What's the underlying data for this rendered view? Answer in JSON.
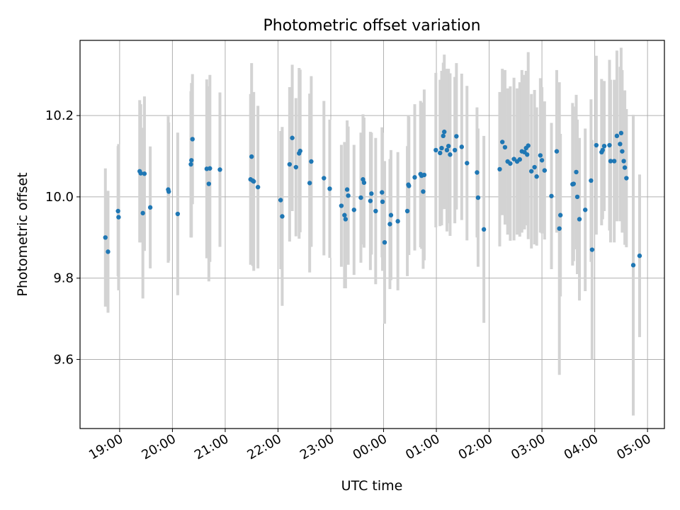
{
  "chart_data": {
    "type": "scatter",
    "title": "Photometric offset variation",
    "xlabel": "UTC time",
    "ylabel": "Photometric offset",
    "x_axis": "time",
    "x_reference_midnight": "00:00",
    "xlim_hours": [
      -5.75,
      5.32
    ],
    "ylim": [
      9.43,
      10.385
    ],
    "xticks": [
      "19:00",
      "20:00",
      "21:00",
      "22:00",
      "23:00",
      "00:00",
      "01:00",
      "02:00",
      "03:00",
      "04:00",
      "05:00"
    ],
    "xtick_hours": [
      -5,
      -4,
      -3,
      -2,
      -1,
      0,
      1,
      2,
      3,
      4,
      5
    ],
    "yticks": [
      9.6,
      9.8,
      10.0,
      10.2
    ],
    "ytick_labels": [
      "9.6",
      "9.8",
      "10.0",
      "10.2"
    ],
    "grid": true,
    "colors": {
      "points": "#1f77b4",
      "errorbars": "#d3d3d3",
      "grid": "#b0b0b0"
    },
    "points": [
      [
        -5.27,
        9.9,
        0.17
      ],
      [
        -5.22,
        9.865,
        0.15
      ],
      [
        -5.03,
        9.965,
        0.16
      ],
      [
        -5.02,
        9.95,
        0.18
      ],
      [
        -4.62,
        10.063,
        0.175
      ],
      [
        -4.6,
        10.058,
        0.17
      ],
      [
        -4.56,
        9.96,
        0.21
      ],
      [
        -4.53,
        10.057,
        0.19
      ],
      [
        -4.42,
        9.974,
        0.15
      ],
      [
        -4.08,
        10.018,
        0.18
      ],
      [
        -4.07,
        10.013,
        0.17
      ],
      [
        -3.9,
        9.958,
        0.2
      ],
      [
        -3.65,
        10.08,
        0.18
      ],
      [
        -3.64,
        10.09,
        0.19
      ],
      [
        -3.62,
        10.142,
        0.16
      ],
      [
        -3.35,
        10.069,
        0.22
      ],
      [
        -3.31,
        10.032,
        0.24
      ],
      [
        -3.29,
        10.07,
        0.23
      ],
      [
        -3.1,
        10.067,
        0.19
      ],
      [
        -2.52,
        10.043,
        0.21
      ],
      [
        -2.5,
        10.099,
        0.23
      ],
      [
        -2.48,
        10.04,
        0.21
      ],
      [
        -2.46,
        10.038,
        0.22
      ],
      [
        -2.38,
        10.024,
        0.2
      ],
      [
        -1.95,
        9.992,
        0.17
      ],
      [
        -1.92,
        9.952,
        0.22
      ],
      [
        -1.78,
        10.08,
        0.19
      ],
      [
        -1.73,
        10.145,
        0.18
      ],
      [
        -1.66,
        10.073,
        0.17
      ],
      [
        -1.6,
        10.107,
        0.21
      ],
      [
        -1.58,
        10.113,
        0.2
      ],
      [
        -1.4,
        10.034,
        0.22
      ],
      [
        -1.37,
        10.087,
        0.21
      ],
      [
        -1.13,
        10.046,
        0.19
      ],
      [
        -1.02,
        10.02,
        0.17
      ],
      [
        -0.8,
        9.978,
        0.15
      ],
      [
        -0.74,
        9.955,
        0.18
      ],
      [
        -0.72,
        9.945,
        0.17
      ],
      [
        -0.69,
        10.018,
        0.17
      ],
      [
        -0.67,
        10.003,
        0.17
      ],
      [
        -0.56,
        9.968,
        0.16
      ],
      [
        -0.43,
        9.998,
        0.16
      ],
      [
        -0.39,
        10.043,
        0.16
      ],
      [
        -0.37,
        10.035,
        0.16
      ],
      [
        -0.25,
        9.99,
        0.17
      ],
      [
        -0.23,
        10.008,
        0.15
      ],
      [
        -0.15,
        9.965,
        0.18
      ],
      [
        -0.03,
        10.011,
        0.16
      ],
      [
        -0.02,
        9.988,
        0.17
      ],
      [
        0.02,
        9.888,
        0.2
      ],
      [
        0.12,
        9.933,
        0.16
      ],
      [
        0.14,
        9.955,
        0.16
      ],
      [
        0.27,
        9.94,
        0.17
      ],
      [
        0.45,
        9.965,
        0.16
      ],
      [
        0.47,
        10.03,
        0.17
      ],
      [
        0.48,
        10.027,
        0.17
      ],
      [
        0.59,
        10.048,
        0.18
      ],
      [
        0.7,
        10.056,
        0.18
      ],
      [
        0.72,
        10.052,
        0.18
      ],
      [
        0.75,
        10.013,
        0.19
      ],
      [
        0.77,
        10.054,
        0.21
      ],
      [
        0.99,
        10.115,
        0.19
      ],
      [
        1.07,
        10.108,
        0.18
      ],
      [
        1.1,
        10.12,
        0.19
      ],
      [
        1.13,
        10.15,
        0.18
      ],
      [
        1.15,
        10.16,
        0.19
      ],
      [
        1.2,
        10.115,
        0.2
      ],
      [
        1.23,
        10.125,
        0.19
      ],
      [
        1.26,
        10.104,
        0.2
      ],
      [
        1.35,
        10.115,
        0.18
      ],
      [
        1.38,
        10.149,
        0.18
      ],
      [
        1.48,
        10.123,
        0.18
      ],
      [
        1.58,
        10.083,
        0.19
      ],
      [
        1.77,
        10.06,
        0.16
      ],
      [
        1.79,
        9.998,
        0.17
      ],
      [
        1.9,
        9.92,
        0.23
      ],
      [
        2.2,
        10.068,
        0.19
      ],
      [
        2.25,
        10.135,
        0.18
      ],
      [
        2.3,
        10.122,
        0.19
      ],
      [
        2.35,
        10.087,
        0.18
      ],
      [
        2.4,
        10.082,
        0.19
      ],
      [
        2.47,
        10.093,
        0.2
      ],
      [
        2.53,
        10.087,
        0.18
      ],
      [
        2.58,
        10.092,
        0.19
      ],
      [
        2.62,
        10.112,
        0.2
      ],
      [
        2.67,
        10.11,
        0.19
      ],
      [
        2.7,
        10.12,
        0.19
      ],
      [
        2.72,
        10.104,
        0.17
      ],
      [
        2.74,
        10.126,
        0.23
      ],
      [
        2.8,
        10.063,
        0.19
      ],
      [
        2.86,
        10.073,
        0.19
      ],
      [
        2.9,
        10.05,
        0.17
      ],
      [
        2.97,
        10.102,
        0.19
      ],
      [
        3.0,
        10.09,
        0.18
      ],
      [
        3.05,
        10.065,
        0.17
      ],
      [
        3.18,
        10.002,
        0.18
      ],
      [
        3.28,
        10.112,
        0.2
      ],
      [
        3.33,
        9.922,
        0.36
      ],
      [
        3.35,
        9.955,
        0.2
      ],
      [
        3.58,
        10.031,
        0.2
      ],
      [
        3.6,
        10.032,
        0.19
      ],
      [
        3.65,
        10.061,
        0.19
      ],
      [
        3.67,
        10.0,
        0.19
      ],
      [
        3.71,
        9.945,
        0.2
      ],
      [
        3.82,
        9.968,
        0.2
      ],
      [
        3.93,
        10.04,
        0.2
      ],
      [
        3.95,
        9.87,
        0.27
      ],
      [
        4.03,
        10.127,
        0.22
      ],
      [
        4.13,
        10.11,
        0.18
      ],
      [
        4.15,
        10.115,
        0.17
      ],
      [
        4.18,
        10.125,
        0.16
      ],
      [
        4.28,
        10.127,
        0.21
      ],
      [
        4.3,
        10.088,
        0.2
      ],
      [
        4.37,
        10.088,
        0.2
      ],
      [
        4.42,
        10.15,
        0.21
      ],
      [
        4.48,
        10.13,
        0.19
      ],
      [
        4.5,
        10.157,
        0.21
      ],
      [
        4.52,
        10.112,
        0.2
      ],
      [
        4.55,
        10.088,
        0.17
      ],
      [
        4.57,
        10.072,
        0.19
      ],
      [
        4.6,
        10.046,
        0.17
      ],
      [
        4.73,
        9.832,
        0.37
      ],
      [
        4.85,
        9.855,
        0.2
      ]
    ]
  }
}
